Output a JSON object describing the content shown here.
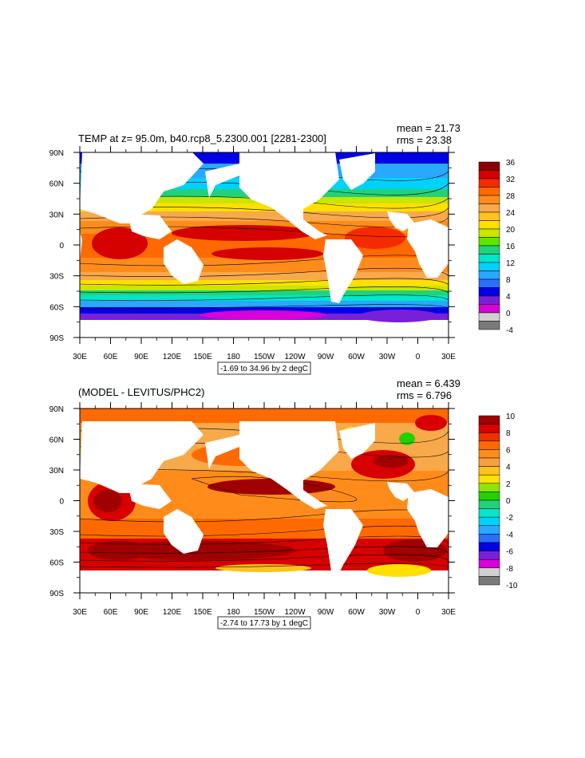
{
  "panels": [
    {
      "id": "temp",
      "title": "TEMP at z=  95.0m, b40.rcp8_5.2300.001 [2281-2300]",
      "mean_label": "mean = 21.73",
      "rms_label": "rms = 23.38",
      "contour_info": "-1.69 to 34.96 by 2 degC",
      "lat_ticks": [
        "90N",
        "60N",
        "30N",
        "0",
        "30S",
        "60S",
        "90S"
      ],
      "lon_ticks": [
        "30E",
        "60E",
        "90E",
        "120E",
        "150E",
        "180",
        "150W",
        "120W",
        "90W",
        "60W",
        "30W",
        "0",
        "30E"
      ],
      "colorbar": {
        "labels": [
          "36",
          "32",
          "28",
          "24",
          "20",
          "16",
          "12",
          "8",
          "4",
          "0",
          "-4"
        ],
        "colors": [
          "#8b0000",
          "#d50000",
          "#f52a00",
          "#ff6a00",
          "#ff8c1a",
          "#f8a94a",
          "#ffc21a",
          "#ffe000",
          "#c8e600",
          "#5ce600",
          "#22d27a",
          "#00e6c8",
          "#00d2ff",
          "#28a8ff",
          "#2a6eff",
          "#0000e6",
          "#7a1fd9",
          "#d900d9",
          "#d0d0d0",
          "#7a7a7a"
        ]
      }
    },
    {
      "id": "diff",
      "title": "(MODEL - LEVITUS/PHC2)",
      "mean_label": "mean = 6.439",
      "rms_label": "rms = 6.796",
      "contour_info": "-2.74 to 17.73 by 1 degC",
      "lat_ticks": [
        "90N",
        "60N",
        "30N",
        "0",
        "30S",
        "60S",
        "90S"
      ],
      "lon_ticks": [
        "30E",
        "60E",
        "90E",
        "120E",
        "150E",
        "180",
        "150W",
        "120W",
        "90W",
        "60W",
        "30W",
        "0",
        "30E"
      ],
      "colorbar": {
        "labels": [
          "10",
          "8",
          "6",
          "4",
          "2",
          "0",
          "-2",
          "-4",
          "-6",
          "-8",
          "-10"
        ],
        "colors": [
          "#a00000",
          "#d80000",
          "#f03000",
          "#ff6a00",
          "#ff8c1a",
          "#f5a040",
          "#ffc21a",
          "#ffe000",
          "#8ee600",
          "#22d200",
          "#22d27a",
          "#00e6c8",
          "#00d2ff",
          "#28a8ff",
          "#2a6eff",
          "#0000e6",
          "#7a1fd9",
          "#d900d9",
          "#d0d0d0",
          "#7a7a7a"
        ]
      }
    }
  ]
}
